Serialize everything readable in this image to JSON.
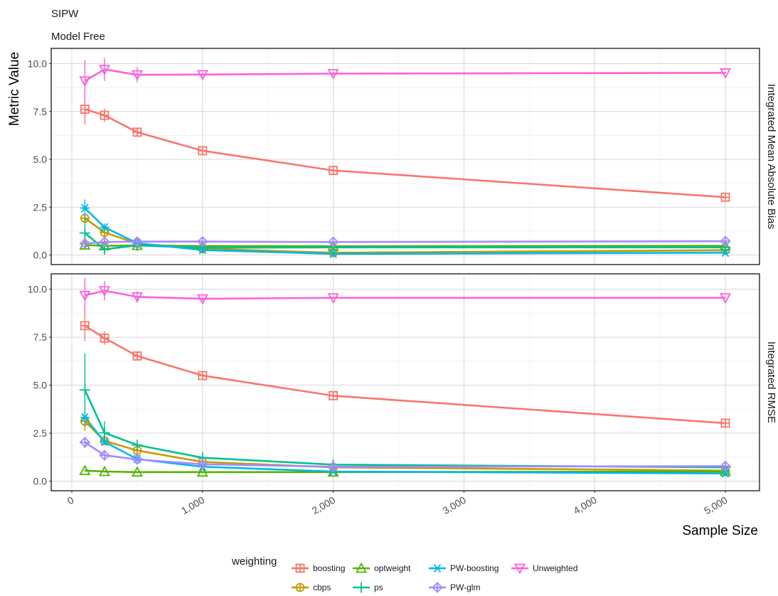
{
  "chart_data": {
    "type": "line",
    "title": "SIPW",
    "subtitle": "Model Free",
    "xlabel": "Sample Size",
    "ylabel": "Metric Value",
    "x": [
      100,
      250,
      500,
      1000,
      2000,
      5000
    ],
    "xlim": [
      0,
      5000
    ],
    "x_tick_values": [
      0,
      1000,
      2000,
      3000,
      4000,
      5000
    ],
    "x_tick_labels": [
      "0",
      "1,000",
      "2,000",
      "3,000",
      "4,000",
      "5,000"
    ],
    "ylim": [
      0,
      10
    ],
    "y_tick_values": [
      0,
      2.5,
      5,
      7.5,
      10
    ],
    "y_tick_labels": [
      "0.0",
      "2.5",
      "5.0",
      "7.5",
      "10.0"
    ],
    "grid": true,
    "legend_title": "weighting",
    "legend_position": "bottom",
    "panels": [
      {
        "strip": "Integrated Mean Absolute Bias",
        "series": [
          {
            "name": "boosting",
            "color": "#F8766D",
            "marker": "square-plus",
            "values": [
              7.62,
              7.3,
              6.42,
              5.45,
              4.42,
              3.02
            ],
            "err": [
              0.8,
              0.35,
              0.2,
              0.1,
              0.1,
              0.05
            ]
          },
          {
            "name": "cbps",
            "color": "#C49A00",
            "marker": "circle-plus",
            "values": [
              1.92,
              1.18,
              0.6,
              0.33,
              0.12,
              0.25
            ],
            "err": [
              0.15,
              0.1,
              0.05,
              0.05,
              0.05,
              0.05
            ]
          },
          {
            "name": "optweight",
            "color": "#53B400",
            "marker": "triangle-up",
            "values": [
              0.52,
              0.48,
              0.5,
              0.47,
              0.46,
              0.48
            ],
            "err": [
              0.05,
              0.05,
              0.05,
              0.05,
              0.05,
              0.05
            ]
          },
          {
            "name": "ps",
            "color": "#00C094",
            "marker": "plus",
            "values": [
              1.15,
              0.3,
              0.5,
              0.38,
              0.4,
              0.4
            ],
            "err": [
              0.8,
              0.15,
              0.1,
              0.05,
              0.05,
              0.05
            ]
          },
          {
            "name": "PW-boosting",
            "color": "#00B6EB",
            "marker": "asterisk",
            "values": [
              2.45,
              1.45,
              0.62,
              0.26,
              0.06,
              0.12
            ],
            "err": [
              0.45,
              0.2,
              0.1,
              0.05,
              0.05,
              0.05
            ]
          },
          {
            "name": "PW-glm",
            "color": "#A58AFF",
            "marker": "diamond-plus",
            "values": [
              0.6,
              0.68,
              0.7,
              0.7,
              0.68,
              0.72
            ],
            "err": [
              0.05,
              0.05,
              0.05,
              0.05,
              0.05,
              0.05
            ]
          },
          {
            "name": "Unweighted",
            "color": "#FB61D7",
            "marker": "triangle-down",
            "values": [
              9.1,
              9.7,
              9.42,
              9.43,
              9.48,
              9.52
            ],
            "err": [
              1.1,
              0.6,
              0.4,
              0.1,
              0.1,
              0.05
            ]
          }
        ]
      },
      {
        "strip": "Integrated RMSE",
        "series": [
          {
            "name": "boosting",
            "color": "#F8766D",
            "marker": "square-plus",
            "values": [
              8.1,
              7.45,
              6.52,
              5.5,
              4.45,
              3.02
            ],
            "err": [
              0.8,
              0.35,
              0.2,
              0.1,
              0.1,
              0.05
            ]
          },
          {
            "name": "cbps",
            "color": "#C49A00",
            "marker": "circle-plus",
            "values": [
              3.12,
              2.1,
              1.6,
              1.0,
              0.72,
              0.55
            ],
            "err": [
              0.5,
              0.2,
              0.1,
              0.05,
              0.05,
              0.05
            ]
          },
          {
            "name": "optweight",
            "color": "#53B400",
            "marker": "triangle-up",
            "values": [
              0.55,
              0.5,
              0.47,
              0.47,
              0.47,
              0.5
            ],
            "err": [
              0.05,
              0.05,
              0.05,
              0.05,
              0.05,
              0.05
            ]
          },
          {
            "name": "ps",
            "color": "#00C094",
            "marker": "plus",
            "values": [
              4.75,
              2.52,
              1.88,
              1.22,
              0.86,
              0.72
            ],
            "err": [
              1.9,
              0.6,
              0.25,
              0.1,
              0.05,
              0.05
            ]
          },
          {
            "name": "PW-boosting",
            "color": "#00B6EB",
            "marker": "asterisk",
            "values": [
              3.32,
              2.05,
              1.15,
              0.75,
              0.5,
              0.4
            ],
            "err": [
              0.3,
              0.15,
              0.1,
              0.05,
              0.05,
              0.05
            ]
          },
          {
            "name": "PW-glm",
            "color": "#A58AFF",
            "marker": "diamond-plus",
            "values": [
              2.02,
              1.35,
              1.13,
              0.88,
              0.75,
              0.78
            ],
            "err": [
              0.3,
              0.1,
              0.05,
              0.05,
              0.05,
              0.05
            ]
          },
          {
            "name": "Unweighted",
            "color": "#FB61D7",
            "marker": "triangle-down",
            "values": [
              9.68,
              9.92,
              9.6,
              9.5,
              9.55,
              9.55
            ],
            "err": [
              0.9,
              0.5,
              0.3,
              0.1,
              0.05,
              0.05
            ]
          }
        ]
      }
    ]
  }
}
